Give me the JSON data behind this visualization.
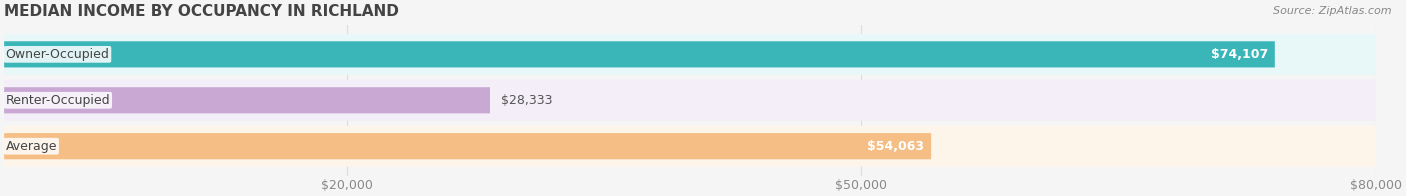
{
  "title": "MEDIAN INCOME BY OCCUPANCY IN RICHLAND",
  "source": "Source: ZipAtlas.com",
  "categories": [
    "Owner-Occupied",
    "Renter-Occupied",
    "Average"
  ],
  "values": [
    74107,
    28333,
    54063
  ],
  "bar_colors": [
    "#3ab5b8",
    "#c9a8d4",
    "#f5be85"
  ],
  "bg_colors": [
    "#e8f7f7",
    "#f3eef7",
    "#fef5ea"
  ],
  "value_labels": [
    "$74,107",
    "$28,333",
    "$54,063"
  ],
  "xlim": [
    0,
    80000
  ],
  "xticks": [
    20000,
    50000,
    80000
  ],
  "xtick_labels": [
    "$20,000",
    "$50,000",
    "$80,000"
  ],
  "title_fontsize": 11,
  "label_fontsize": 9,
  "value_fontsize": 9,
  "source_fontsize": 8,
  "bar_height": 0.55,
  "background_color": "#f5f5f5",
  "grid_color": "#dddddd"
}
